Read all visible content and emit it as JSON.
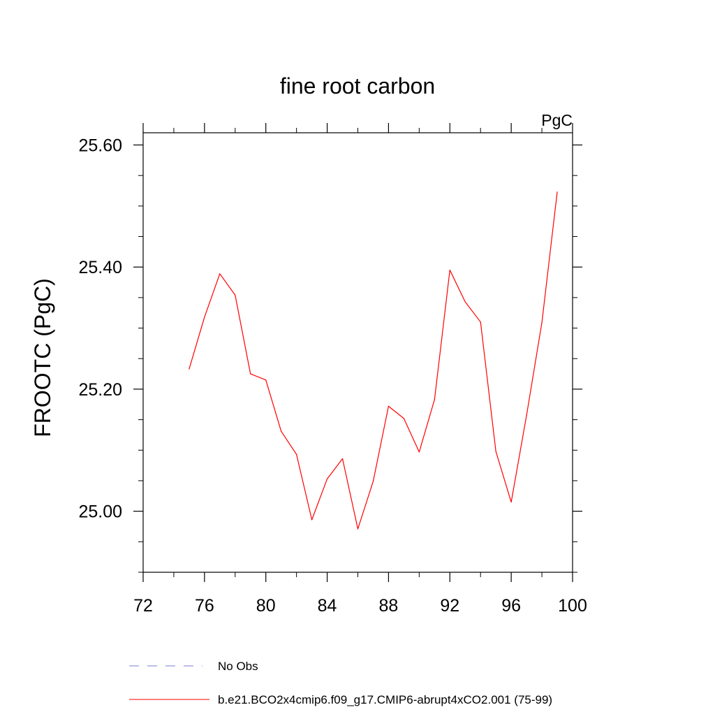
{
  "chart_data": {
    "type": "line",
    "title": "fine root carbon",
    "units_label": "PgC",
    "ylabel": "FROOTC  (PgC)",
    "xlabel": "",
    "xlim": [
      72,
      100
    ],
    "ylim": [
      24.9,
      25.62
    ],
    "x_ticks": [
      72,
      76,
      80,
      84,
      88,
      92,
      96,
      100
    ],
    "x_tick_labels": [
      "72",
      "76",
      "80",
      "84",
      "88",
      "92",
      "96",
      "100"
    ],
    "y_ticks": [
      25.0,
      25.2,
      25.4,
      25.6
    ],
    "y_tick_labels": [
      "25.00",
      "25.20",
      "25.40",
      "25.60"
    ],
    "y_minor_step": 0.05,
    "x_minor_step": 2,
    "grid": false,
    "legend": [
      {
        "label": "No Obs",
        "style": "dashed",
        "color": "#7b7bd6"
      },
      {
        "label": "b.e21.BCO2x4cmip6.f09_g17.CMIP6-abrupt4xCO2.001 (75-99)",
        "style": "solid",
        "color": "#ff0000"
      }
    ],
    "series": [
      {
        "name": "b.e21.BCO2x4cmip6.f09_g17.CMIP6-abrupt4xCO2.001 (75-99)",
        "color": "#ff0000",
        "x": [
          75,
          76,
          77,
          78,
          79,
          80,
          81,
          82,
          83,
          84,
          85,
          86,
          87,
          88,
          89,
          90,
          91,
          92,
          93,
          94,
          95,
          96,
          97,
          98,
          99
        ],
        "y": [
          25.233,
          25.318,
          25.389,
          25.354,
          25.225,
          25.215,
          25.131,
          25.093,
          24.986,
          25.053,
          25.086,
          24.971,
          25.049,
          25.172,
          25.152,
          25.097,
          25.183,
          25.395,
          25.343,
          25.31,
          25.098,
          25.015,
          25.157,
          25.309,
          25.523
        ]
      }
    ]
  }
}
